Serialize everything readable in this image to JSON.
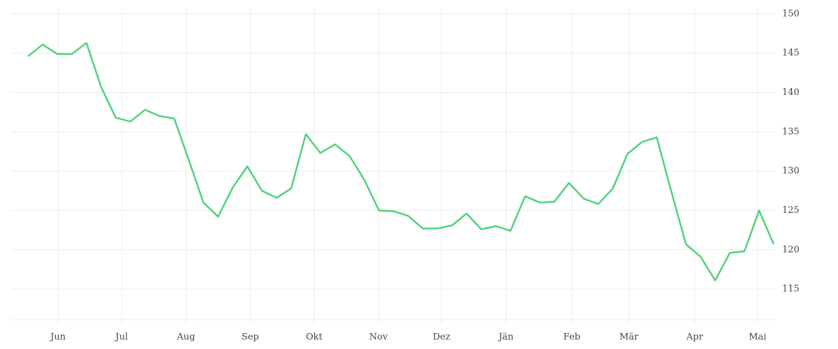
{
  "chart_data": {
    "type": "line",
    "x": [
      0,
      1,
      2,
      3,
      4,
      5,
      6,
      7,
      8,
      9,
      10,
      11,
      12,
      13,
      14,
      15,
      16,
      17,
      18,
      19,
      20,
      21,
      22,
      23,
      24,
      25,
      26,
      27,
      28,
      29,
      30,
      31,
      32,
      33,
      34,
      35,
      36,
      37,
      38,
      39,
      40,
      41,
      42,
      43,
      44,
      45,
      46,
      47,
      48,
      49,
      50,
      51
    ],
    "series": [
      {
        "color": "#4fd27a",
        "values": [
          144.6,
          146.1,
          144.9,
          144.9,
          146.3,
          140.7,
          136.8,
          136.3,
          137.8,
          137.0,
          136.7,
          131.4,
          126.0,
          124.2,
          127.9,
          130.6,
          127.5,
          126.6,
          127.8,
          134.7,
          132.3,
          133.4,
          131.9,
          128.9,
          125.0,
          124.9,
          124.3,
          122.7,
          122.7,
          123.1,
          124.6,
          122.6,
          123.0,
          122.4,
          126.8,
          126.0,
          126.1,
          128.5,
          126.5,
          125.8,
          127.8,
          132.2,
          133.7,
          134.3,
          127.4,
          120.7,
          119.1,
          116.1,
          119.6,
          119.8,
          125.0,
          120.7
        ]
      }
    ],
    "xlim": [
      -1.15,
      51.1
    ],
    "xticks": [
      {
        "value": 2.06,
        "label": "Jun"
      },
      {
        "value": 6.41,
        "label": "Jul"
      },
      {
        "value": 10.81,
        "label": "Aug"
      },
      {
        "value": 15.2,
        "label": "Sep"
      },
      {
        "value": 19.57,
        "label": "Okt"
      },
      {
        "value": 23.97,
        "label": "Nov"
      },
      {
        "value": 28.28,
        "label": "Dez"
      },
      {
        "value": 32.7,
        "label": "Jän"
      },
      {
        "value": 37.2,
        "label": "Feb"
      },
      {
        "value": 41.1,
        "label": "Mär"
      },
      {
        "value": 45.6,
        "label": "Apr"
      },
      {
        "value": 49.9,
        "label": "Mai"
      }
    ],
    "ylim": [
      111.1,
      150.7
    ],
    "yticks": [
      115,
      120,
      125,
      130,
      135,
      140,
      145,
      150
    ],
    "grid": true
  }
}
